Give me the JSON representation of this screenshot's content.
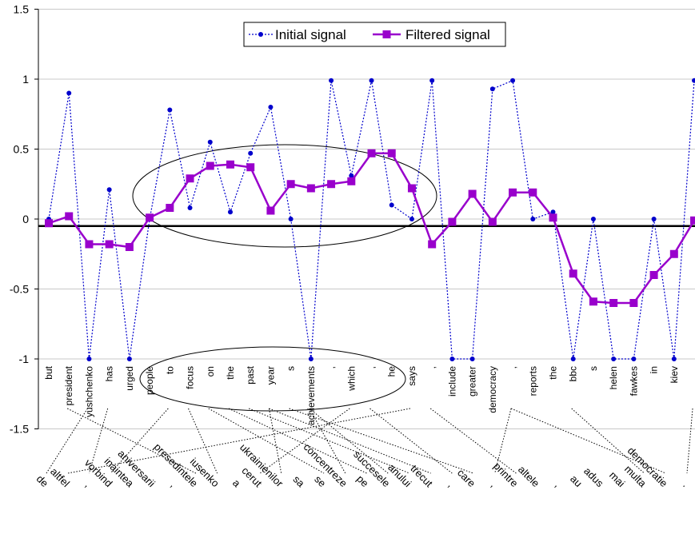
{
  "chart_data": {
    "type": "line",
    "ylim": [
      -1.5,
      1.5
    ],
    "yticks": [
      "1.5",
      "1",
      "0.5",
      "0",
      "-0.5",
      "-1",
      "-1.5"
    ],
    "ytick_values": [
      1.5,
      1,
      0.5,
      0,
      -0.5,
      -1,
      -1.5
    ],
    "grid": true,
    "legend_placement": "top-center",
    "threshold": -0.05,
    "categories": [
      "but",
      "president",
      "yushchenko",
      "has",
      "urged",
      "people",
      "to",
      "focus",
      "on",
      "the",
      "past",
      "year",
      "s",
      "achievements",
      ",",
      "which",
      ",",
      "he",
      "says",
      ",",
      "include",
      "greater",
      "democracy",
      ",",
      "reports",
      "the",
      "bbc",
      "s",
      "helen",
      "fawkes",
      "in",
      "kiev",
      "."
    ],
    "series": [
      {
        "name": "Initial signal",
        "color": "#0000cc",
        "values": [
          0,
          0.9,
          -1,
          0.21,
          -1,
          0,
          0.78,
          0.08,
          0.55,
          0.05,
          0.47,
          0.8,
          0,
          -1,
          0.99,
          0.31,
          0.99,
          0.1,
          0,
          0.99,
          -1,
          -1,
          0.93,
          0.99,
          0,
          0.05,
          -1,
          0,
          -1,
          -1,
          0,
          -1,
          0.99
        ]
      },
      {
        "name": "Filtered signal",
        "color": "#9900cc",
        "values": [
          -0.03,
          0.02,
          -0.18,
          -0.18,
          -0.2,
          0.01,
          0.08,
          0.29,
          0.38,
          0.39,
          0.37,
          0.06,
          0.25,
          0.22,
          0.25,
          0.27,
          0.47,
          0.47,
          0.22,
          -0.18,
          -0.02,
          0.18,
          -0.02,
          0.19,
          0.19,
          0.01,
          -0.39,
          -0.59,
          -0.6,
          -0.6,
          -0.4,
          -0.25,
          -0.01
        ]
      }
    ],
    "source_words": [
      "de",
      "altfel",
      ",",
      "vorbind",
      "inaintea",
      "aniversarii",
      ",",
      "presedintele",
      "iusenko",
      "a",
      "cerut",
      "ukrainienilor",
      "sa",
      "se",
      "concentreze",
      "pe",
      "succesele",
      "anului",
      "trecut",
      ",",
      "care",
      ",",
      "printre",
      "altele",
      ",",
      "au",
      "adus",
      "mai",
      "multa",
      "democratie",
      "."
    ],
    "alignments": [
      [
        1,
        7
      ],
      [
        2,
        0
      ],
      [
        3,
        2
      ],
      [
        6,
        3
      ],
      [
        7,
        8
      ],
      [
        8,
        13
      ],
      [
        9,
        15
      ],
      [
        10,
        17
      ],
      [
        11,
        18
      ],
      [
        11,
        11
      ],
      [
        12,
        20
      ],
      [
        13,
        14
      ],
      [
        13,
        16
      ],
      [
        15,
        10
      ],
      [
        16,
        19
      ],
      [
        18,
        1
      ],
      [
        19,
        22
      ],
      [
        23,
        21
      ],
      [
        23,
        29
      ],
      [
        26,
        28
      ],
      [
        32,
        30
      ]
    ]
  }
}
